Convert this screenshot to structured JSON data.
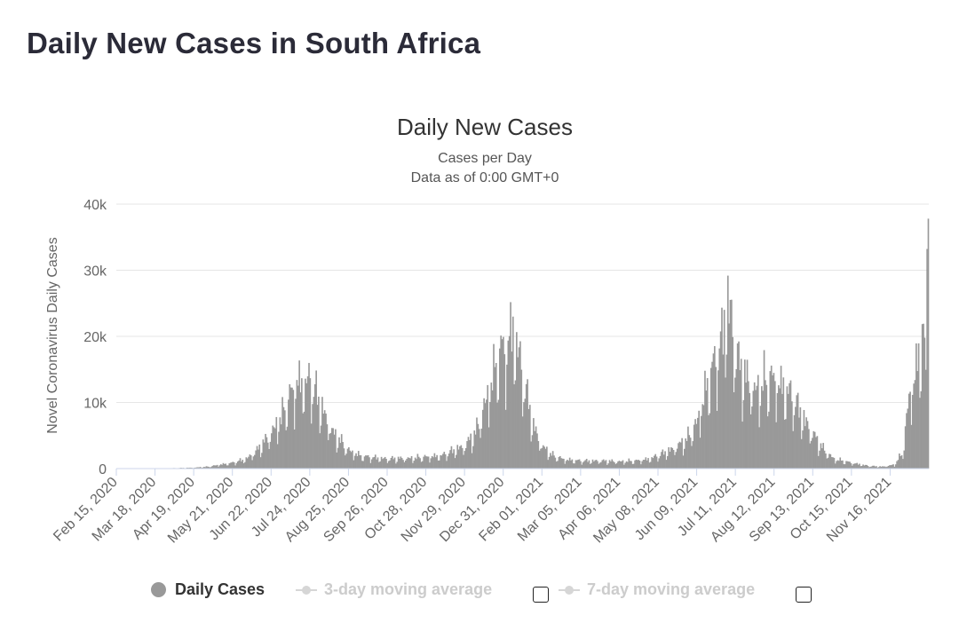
{
  "page": {
    "title": "Daily New Cases in South Africa"
  },
  "legend": {
    "items": [
      {
        "label": "Daily Cases",
        "color": "#999999",
        "active": true
      },
      {
        "label": "3-day moving average",
        "color": "#d6d6d6",
        "active": false
      },
      {
        "label": "7-day moving average",
        "color": "#d6d6d6",
        "active": false
      }
    ]
  },
  "chart_data": {
    "type": "bar",
    "title": "Daily New Cases",
    "subtitle": "Cases per Day",
    "subtitle2": "Data as of 0:00 GMT+0",
    "ylabel": "Novel Coronavirus Daily Cases",
    "xlabel": "",
    "ylim": [
      0,
      40000
    ],
    "yticks": [
      0,
      10000,
      20000,
      30000,
      40000
    ],
    "ytick_labels": [
      "0",
      "10k",
      "20k",
      "30k",
      "40k"
    ],
    "xlim": [
      "2020-02-15",
      "2021-12-18"
    ],
    "xtick_labels": [
      "Feb 15, 2020",
      "Mar 18, 2020",
      "Apr 19, 2020",
      "May 21, 2020",
      "Jun 22, 2020",
      "Jul 24, 2020",
      "Aug 25, 2020",
      "Sep 26, 2020",
      "Oct 28, 2020",
      "Nov 29, 2020",
      "Dec 31, 2020",
      "Feb 01, 2021",
      "Mar 05, 2021",
      "Apr 06, 2021",
      "May 08, 2021",
      "Jun 09, 2021",
      "Jul 11, 2021",
      "Aug 12, 2021",
      "Sep 13, 2021",
      "Oct 15, 2021",
      "Nov 16, 2021"
    ],
    "grid": true,
    "bar_color": "#999999",
    "series": [
      {
        "name": "Daily Cases",
        "points": [
          [
            "2020-02-15",
            0
          ],
          [
            "2020-03-05",
            0
          ],
          [
            "2020-03-20",
            40
          ],
          [
            "2020-04-05",
            80
          ],
          [
            "2020-04-19",
            150
          ],
          [
            "2020-05-01",
            300
          ],
          [
            "2020-05-10",
            600
          ],
          [
            "2020-05-21",
            900
          ],
          [
            "2020-06-01",
            1500
          ],
          [
            "2020-06-10",
            2800
          ],
          [
            "2020-06-20",
            5000
          ],
          [
            "2020-06-30",
            8000
          ],
          [
            "2020-07-08",
            11500
          ],
          [
            "2020-07-14",
            13400
          ],
          [
            "2020-07-20",
            13200
          ],
          [
            "2020-07-24",
            13800
          ],
          [
            "2020-07-30",
            11000
          ],
          [
            "2020-08-05",
            8300
          ],
          [
            "2020-08-12",
            5500
          ],
          [
            "2020-08-25",
            2800
          ],
          [
            "2020-09-05",
            1900
          ],
          [
            "2020-09-26",
            1500
          ],
          [
            "2020-10-15",
            1600
          ],
          [
            "2020-10-28",
            1800
          ],
          [
            "2020-11-10",
            2000
          ],
          [
            "2020-11-22",
            3000
          ],
          [
            "2020-11-29",
            3500
          ],
          [
            "2020-12-08",
            5500
          ],
          [
            "2020-12-15",
            9500
          ],
          [
            "2020-12-22",
            14000
          ],
          [
            "2020-12-28",
            18000
          ],
          [
            "2021-01-02",
            18500
          ],
          [
            "2021-01-08",
            21800
          ],
          [
            "2021-01-13",
            17500
          ],
          [
            "2021-01-18",
            12500
          ],
          [
            "2021-01-25",
            6500
          ],
          [
            "2021-02-01",
            3500
          ],
          [
            "2021-02-10",
            2000
          ],
          [
            "2021-02-20",
            1400
          ],
          [
            "2021-03-05",
            1200
          ],
          [
            "2021-03-20",
            1200
          ],
          [
            "2021-04-06",
            1100
          ],
          [
            "2021-04-20",
            1200
          ],
          [
            "2021-05-01",
            1500
          ],
          [
            "2021-05-08",
            2000
          ],
          [
            "2021-05-20",
            3000
          ],
          [
            "2021-06-01",
            4500
          ],
          [
            "2021-06-09",
            7000
          ],
          [
            "2021-06-18",
            13000
          ],
          [
            "2021-06-25",
            17000
          ],
          [
            "2021-07-01",
            21000
          ],
          [
            "2021-07-05",
            26400
          ],
          [
            "2021-07-09",
            21000
          ],
          [
            "2021-07-14",
            16000
          ],
          [
            "2021-07-20",
            14000
          ],
          [
            "2021-07-28",
            12000
          ],
          [
            "2021-08-05",
            13500
          ],
          [
            "2021-08-12",
            14000
          ],
          [
            "2021-08-20",
            12500
          ],
          [
            "2021-08-28",
            11000
          ],
          [
            "2021-09-05",
            8000
          ],
          [
            "2021-09-13",
            5500
          ],
          [
            "2021-09-22",
            3000
          ],
          [
            "2021-10-01",
            1500
          ],
          [
            "2021-10-15",
            900
          ],
          [
            "2021-10-30",
            400
          ],
          [
            "2021-11-10",
            300
          ],
          [
            "2021-11-20",
            600
          ],
          [
            "2021-11-27",
            2500
          ],
          [
            "2021-12-02",
            11000
          ],
          [
            "2021-12-06",
            14000
          ],
          [
            "2021-12-09",
            16000
          ],
          [
            "2021-12-12",
            19500
          ],
          [
            "2021-12-14",
            22000
          ],
          [
            "2021-12-16",
            13000
          ],
          [
            "2021-12-17",
            37800
          ]
        ]
      }
    ]
  }
}
